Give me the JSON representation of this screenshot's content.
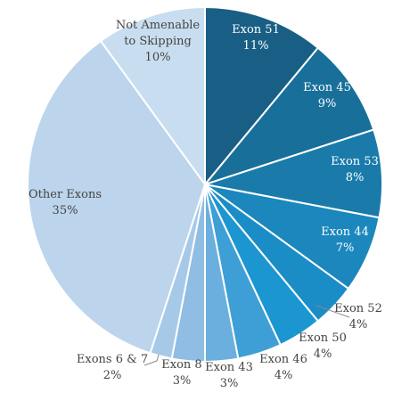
{
  "chart_data": {
    "type": "pie",
    "title": "",
    "start_angle_deg": 0,
    "direction": "clockwise",
    "slices": [
      {
        "label": "Exon 51",
        "value": 11,
        "value_label": "11%",
        "color": "#195f85"
      },
      {
        "label": "Exon 45",
        "value": 9,
        "value_label": "9%",
        "color": "#186f9a"
      },
      {
        "label": "Exon 53",
        "value": 8,
        "value_label": "8%",
        "color": "#1a7bab"
      },
      {
        "label": "Exon 44",
        "value": 7,
        "value_label": "7%",
        "color": "#1b87bd"
      },
      {
        "label": "Exon 52",
        "value": 4,
        "value_label": "4%",
        "color": "#1b8dc6"
      },
      {
        "label": "Exon 50",
        "value": 4,
        "value_label": "4%",
        "color": "#1c96d0"
      },
      {
        "label": "Exon 46",
        "value": 4,
        "value_label": "4%",
        "color": "#3e9fd6"
      },
      {
        "label": "Exon 43",
        "value": 3,
        "value_label": "3%",
        "color": "#6aafdd"
      },
      {
        "label": "Exon 8",
        "value": 3,
        "value_label": "3%",
        "color": "#8fbde3"
      },
      {
        "label": "Exons 6 & 7",
        "value": 2,
        "value_label": "2%",
        "color": "#a6c9e8"
      },
      {
        "label": "Other Exons",
        "value": 35,
        "value_label": "35%",
        "color": "#bcd5ec"
      },
      {
        "label": "Not Amenable to Skipping",
        "label_lines": [
          "Not Amenable",
          "to Skipping"
        ],
        "value": 10,
        "value_label": "10%",
        "color": "#c8def0"
      }
    ]
  }
}
